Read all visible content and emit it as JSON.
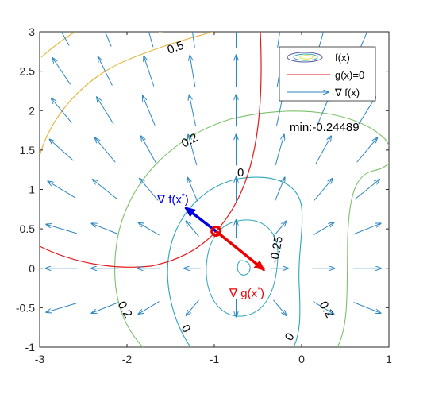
{
  "chart_data": {
    "type": "contour",
    "xlim": [
      -3,
      1
    ],
    "ylim": [
      -1,
      3
    ],
    "xticks": [
      "-3",
      "-2",
      "-1",
      "0",
      "1"
    ],
    "yticks": [
      "-1",
      "-0.5",
      "0",
      "0.5",
      "1",
      "1.5",
      "2",
      "2.5",
      "3"
    ],
    "contour_labels": [
      "0.5",
      "0.2",
      "0",
      "-0.25",
      "0.2",
      "0",
      "0",
      "0.2"
    ],
    "legend": {
      "placement": "top-right",
      "entries": [
        "f(x)",
        "g(x)=0",
        "∇ f(x)"
      ]
    },
    "min_text": "min:-0.24489",
    "point": {
      "x": -0.98,
      "y": 0.47
    },
    "grad_f_label": "∇ f(x",
    "grad_g_label": "∇ g(x",
    "star": "*",
    "close_paren": ")",
    "grad_f_vector": {
      "dx": -0.35,
      "dy": 0.3
    },
    "grad_g_vector": {
      "dx": 0.55,
      "dy": -0.49
    },
    "colors": {
      "contour_outer": "#e5b43a",
      "contour_mid": "#7dc06a",
      "contour_inner": "#2aa6b8",
      "constraint": "#e31a1c",
      "quiver": "#2e86c1",
      "grad_f": "#0000e0",
      "grad_g": "#ee0000"
    }
  }
}
